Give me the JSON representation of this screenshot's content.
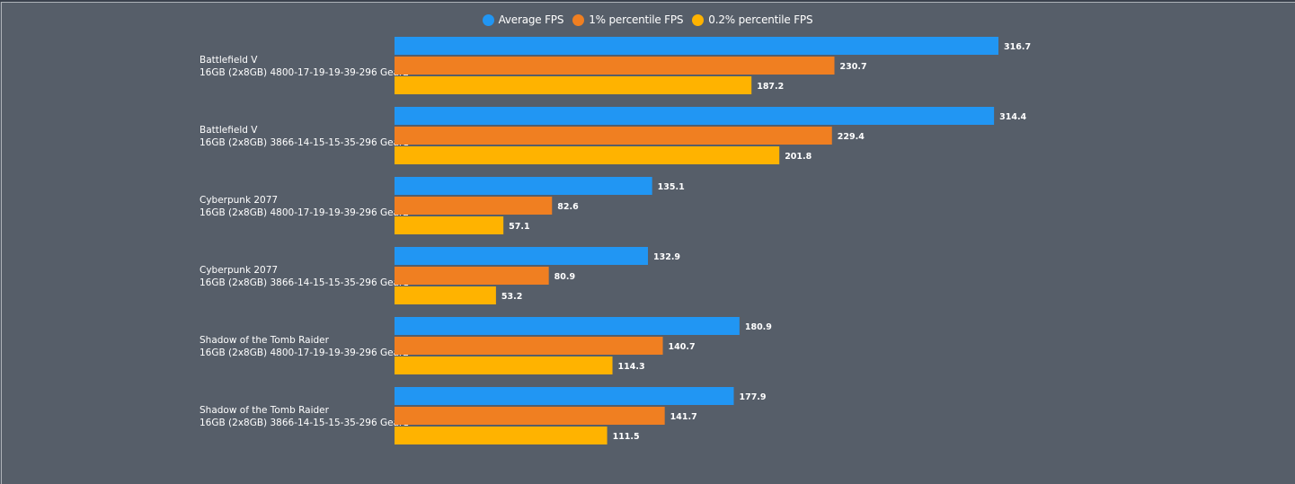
{
  "chart_data": {
    "type": "bar",
    "orientation": "horizontal",
    "title": "",
    "xlabel": "",
    "ylabel": "",
    "grid": false,
    "legend_position": "top-center",
    "categories": [
      {
        "game": "Battlefield V",
        "config": "16GB (2x8GB) 4800-17-19-19-39-296 Gear2"
      },
      {
        "game": "Battlefield V",
        "config": "16GB (2x8GB) 3866-14-15-15-35-296 Gear1"
      },
      {
        "game": "Cyberpunk 2077",
        "config": "16GB (2x8GB) 4800-17-19-19-39-296 Gear2"
      },
      {
        "game": "Cyberpunk 2077",
        "config": "16GB (2x8GB) 3866-14-15-15-35-296 Gear1"
      },
      {
        "game": "Shadow of the Tomb Raider",
        "config": "16GB (2x8GB) 4800-17-19-19-39-296 Gear2"
      },
      {
        "game": "Shadow of the Tomb Raider",
        "config": "16GB (2x8GB) 3866-14-15-15-35-296 Gear1"
      }
    ],
    "series": [
      {
        "name": "Average FPS",
        "color": "#2196f3",
        "values": [
          316.7,
          314.4,
          135.1,
          132.9,
          180.9,
          177.9
        ]
      },
      {
        "name": "1% percentile FPS",
        "color": "#f07f21",
        "values": [
          230.7,
          229.4,
          82.6,
          80.9,
          140.7,
          141.7
        ]
      },
      {
        "name": "0.2% percentile FPS",
        "color": "#ffb300",
        "values": [
          187.2,
          201.8,
          57.1,
          53.2,
          114.3,
          111.5
        ]
      }
    ],
    "xlim": [
      0,
      316.7
    ]
  }
}
